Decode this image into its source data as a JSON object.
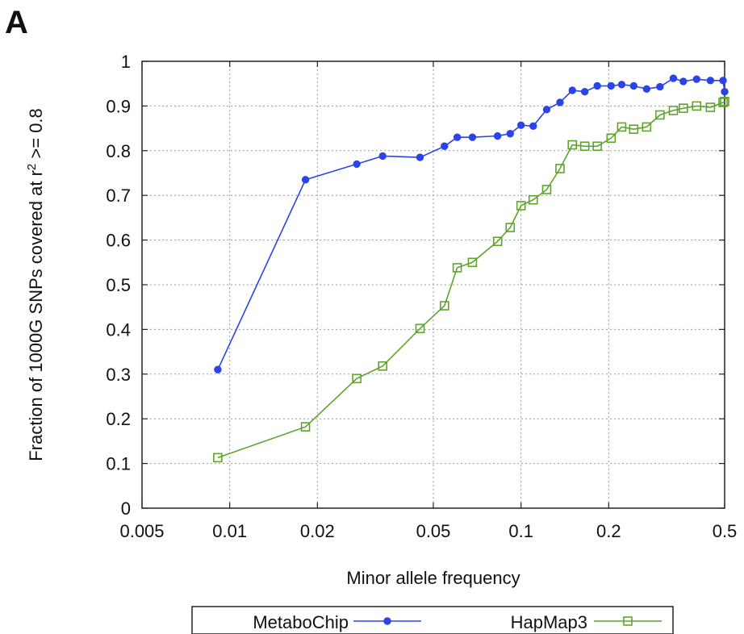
{
  "panel_label": "A",
  "chart_data": {
    "type": "line",
    "title": "",
    "xlabel": "Minor allele frequency",
    "ylabel": "Fraction of 1000G SNPs covered at r^2 >= 0.8",
    "ylabel_parts": {
      "main": "Fraction of 1000G SNPs covered at r",
      "sup": "2",
      "tail": " >= 0.8"
    },
    "xscale": "log",
    "xlim": [
      0.005,
      0.5
    ],
    "ylim": [
      0,
      1
    ],
    "x_ticks": [
      0.005,
      0.01,
      0.02,
      0.05,
      0.1,
      0.2,
      0.5
    ],
    "x_tick_labels": [
      "0.005",
      "0.01",
      "0.02",
      "0.05",
      "0.1",
      "0.2",
      "0.5"
    ],
    "y_ticks": [
      0,
      0.1,
      0.2,
      0.3,
      0.4,
      0.5,
      0.6,
      0.7,
      0.8,
      0.9,
      1
    ],
    "y_tick_labels": [
      "0",
      "0.1",
      "0.2",
      "0.3",
      "0.4",
      "0.5",
      "0.6",
      "0.7",
      "0.8",
      "0.9",
      "1"
    ],
    "grid": true,
    "legend_position": "bottom",
    "series": [
      {
        "name": "MetaboChip",
        "color": "#2b44e8",
        "marker": "filled-circle",
        "x": [
          0.0091,
          0.0182,
          0.0273,
          0.0335,
          0.045,
          0.0546,
          0.0604,
          0.0681,
          0.0831,
          0.0918,
          0.1,
          0.1101,
          0.1225,
          0.1361,
          0.15,
          0.1655,
          0.1827,
          0.2038,
          0.2216,
          0.2437,
          0.2699,
          0.2999,
          0.3334,
          0.3607,
          0.4006,
          0.4468,
          0.4938,
          0.5
        ],
        "y": [
          0.31,
          0.735,
          0.77,
          0.788,
          0.785,
          0.81,
          0.83,
          0.83,
          0.833,
          0.838,
          0.857,
          0.855,
          0.892,
          0.908,
          0.935,
          0.932,
          0.945,
          0.945,
          0.948,
          0.945,
          0.938,
          0.943,
          0.962,
          0.955,
          0.96,
          0.957,
          0.957,
          0.932
        ]
      },
      {
        "name": "HapMap3",
        "color": "#5fa32e",
        "marker": "open-square",
        "x": [
          0.0091,
          0.0182,
          0.0273,
          0.0335,
          0.045,
          0.0546,
          0.0604,
          0.0681,
          0.0831,
          0.0918,
          0.1,
          0.1101,
          0.1225,
          0.1361,
          0.15,
          0.1655,
          0.1827,
          0.2038,
          0.2216,
          0.2437,
          0.2699,
          0.2999,
          0.3334,
          0.3607,
          0.4006,
          0.4468,
          0.4938,
          0.5
        ],
        "y": [
          0.113,
          0.182,
          0.29,
          0.318,
          0.402,
          0.453,
          0.538,
          0.55,
          0.597,
          0.628,
          0.677,
          0.69,
          0.713,
          0.76,
          0.813,
          0.81,
          0.81,
          0.828,
          0.853,
          0.848,
          0.853,
          0.88,
          0.89,
          0.895,
          0.9,
          0.897,
          0.908,
          0.91
        ]
      }
    ]
  }
}
